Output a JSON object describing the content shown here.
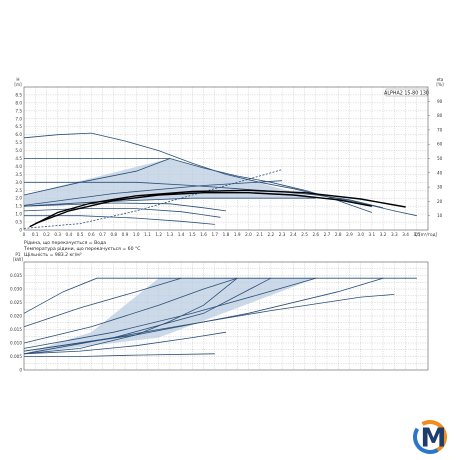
{
  "chart_data": [
    {
      "type": "line",
      "title": "",
      "model_label": "ALPHA2 15-80 130",
      "xlabel": "Q [m³/год]",
      "x_unit_label": "Q [m³/год]",
      "xlim": [
        0,
        3.6
      ],
      "x_ticks": [
        "0",
        "0.1",
        "0.2",
        "0.3",
        "0.4",
        "0.5",
        "0.6",
        "0.7",
        "0.8",
        "0.9",
        "1.0",
        "1.1",
        "1.2",
        "1.3",
        "1.4",
        "1.5",
        "1.6",
        "1.7",
        "1.8",
        "1.9",
        "2.0",
        "2.1",
        "2.2",
        "2.3",
        "2.4",
        "2.5",
        "2.6",
        "2.7",
        "2.8",
        "2.9",
        "3.0",
        "3.1",
        "3.2",
        "3.3",
        "3.4",
        "3.5"
      ],
      "ylabel_left": "H [m]",
      "y_left_var": "H",
      "y_left_unit": "[m]",
      "ylim_left": [
        0,
        9
      ],
      "y_left_ticks": [
        "0",
        "0.5",
        "1.0",
        "1.5",
        "2.0",
        "2.5",
        "3.0",
        "3.5",
        "4.0",
        "4.5",
        "5.0",
        "5.5",
        "6.0",
        "6.5",
        "7.0",
        "7.5",
        "8.0",
        "8.5",
        "9"
      ],
      "ylabel_right": "eta [%]",
      "y_right_var": "eta",
      "y_right_unit": "[%]",
      "ylim_right": [
        0,
        100
      ],
      "y_right_ticks": [
        "10",
        "20",
        "30",
        "40",
        "50",
        "60",
        "70",
        "80",
        "90"
      ],
      "grid": true,
      "notes": [
        "Рідина, що перекачується = Вода",
        "Температура рідини, що перекачується = 60 °C",
        "Щільність = 983.2 кг/м³"
      ],
      "colors": {
        "curve": "#2b4f78",
        "fill": "#b9cce0",
        "efficiency": "#000000",
        "grid": "#9a9a9a"
      },
      "fill_region_H": {
        "upper": [
          [
            0,
            2.2
          ],
          [
            1.3,
            4.5
          ],
          [
            2.6,
            2.0
          ]
        ],
        "lower": [
          [
            0,
            1.5
          ],
          [
            1.5,
            2.0
          ],
          [
            2.6,
            2.0
          ]
        ]
      },
      "series": [
        {
          "kind": "max",
          "values": [
            [
              0,
              5.8
            ],
            [
              0.3,
              6.0
            ],
            [
              0.6,
              6.1
            ],
            [
              0.9,
              5.6
            ],
            [
              1.2,
              5.0
            ],
            [
              1.5,
              4.2
            ],
            [
              1.8,
              3.5
            ],
            [
              2.1,
              3.0
            ],
            [
              2.4,
              2.6
            ],
            [
              2.7,
              2.1
            ],
            [
              3.0,
              1.7
            ],
            [
              3.3,
              1.2
            ],
            [
              3.5,
              0.9
            ]
          ]
        },
        {
          "kind": "constant",
          "values": [
            [
              0,
              4.5
            ],
            [
              1.3,
              4.5
            ],
            [
              1.6,
              3.9
            ],
            [
              1.9,
              3.4
            ],
            [
              2.2,
              3.0
            ],
            [
              2.5,
              2.5
            ],
            [
              2.7,
              2.1
            ],
            [
              2.9,
              1.6
            ],
            [
              3.1,
              1.1
            ]
          ]
        },
        {
          "kind": "constant",
          "values": [
            [
              0,
              3.0
            ],
            [
              1.0,
              3.0
            ],
            [
              1.5,
              2.8
            ],
            [
              1.9,
              2.6
            ],
            [
              2.3,
              2.4
            ],
            [
              2.6,
              2.2
            ],
            [
              2.9,
              1.9
            ],
            [
              3.2,
              1.4
            ]
          ]
        },
        {
          "kind": "proportional",
          "values": [
            [
              0,
              2.2
            ],
            [
              0.5,
              3.0
            ],
            [
              1.0,
              3.7
            ],
            [
              1.3,
              4.5
            ]
          ]
        },
        {
          "kind": "proportional",
          "values": [
            [
              0,
              1.55
            ],
            [
              0.8,
              2.3
            ],
            [
              1.6,
              2.8
            ],
            [
              2.3,
              3.1
            ]
          ]
        },
        {
          "kind": "proportional",
          "values": [
            [
              0,
              1.5
            ],
            [
              0.6,
              1.75
            ],
            [
              1.5,
              2.0
            ],
            [
              2.6,
              2.0
            ]
          ]
        },
        {
          "kind": "proportional",
          "values": [
            [
              0,
              1.5
            ],
            [
              0.4,
              1.6
            ],
            [
              0.8,
              1.7
            ],
            [
              1.3,
              1.65
            ],
            [
              1.6,
              1.4
            ],
            [
              1.8,
              1.2
            ]
          ]
        },
        {
          "kind": "autoadapt",
          "values": [
            [
              0,
              1.2
            ],
            [
              0.5,
              1.35
            ],
            [
              1.0,
              1.35
            ],
            [
              1.4,
              1.15
            ],
            [
              1.6,
              0.95
            ],
            [
              1.75,
              0.8
            ]
          ]
        },
        {
          "kind": "min",
          "values": [
            [
              0,
              0.9
            ],
            [
              0.5,
              0.9
            ],
            [
              1.0,
              0.75
            ],
            [
              1.4,
              0.55
            ],
            [
              1.7,
              0.35
            ]
          ]
        },
        {
          "kind": "system",
          "values": [
            [
              0,
              0.1
            ],
            [
              0.5,
              0.4
            ],
            [
              1.0,
              1.2
            ],
            [
              1.5,
              2.2
            ],
            [
              2.0,
              3.2
            ],
            [
              2.3,
              3.8
            ]
          ]
        },
        {
          "kind": "efficiency",
          "values": [
            [
              0.05,
              0.2
            ],
            [
              0.3,
              1.1
            ],
            [
              0.6,
              1.7
            ],
            [
              1.0,
              2.15
            ],
            [
              1.5,
              2.42
            ],
            [
              2.0,
              2.5
            ],
            [
              2.5,
              2.35
            ],
            [
              3.0,
              1.95
            ],
            [
              3.4,
              1.45
            ]
          ]
        },
        {
          "kind": "efficiency",
          "values": [
            [
              0.1,
              0.4
            ],
            [
              0.4,
              1.2
            ],
            [
              0.8,
              1.85
            ],
            [
              1.2,
              2.2
            ],
            [
              1.6,
              2.35
            ],
            [
              2.0,
              2.35
            ],
            [
              2.4,
              2.2
            ],
            [
              2.8,
              1.9
            ],
            [
              3.1,
              1.5
            ]
          ]
        }
      ]
    },
    {
      "type": "line",
      "ylabel": "P1 [kW]",
      "y_var": "P1",
      "y_unit": "[kW]",
      "ylim": [
        0,
        0.04
      ],
      "y_ticks": [
        "0",
        "0.005",
        "0.010",
        "0.015",
        "0.020",
        "0.025",
        "0.030",
        "0.035"
      ],
      "xlim": [
        0,
        3.6
      ],
      "grid": true,
      "colors": {
        "curve": "#2b4f78",
        "fill": "#b9cce0"
      },
      "fill_region_P": {
        "upper": [
          [
            0,
            0.006
          ],
          [
            0.6,
            0.014
          ],
          [
            1.2,
            0.034
          ],
          [
            2.6,
            0.034
          ]
        ],
        "lower": [
          [
            0,
            0.006
          ],
          [
            1.2,
            0.012
          ],
          [
            2.6,
            0.034
          ]
        ]
      },
      "series": [
        {
          "kind": "max",
          "values": [
            [
              0,
              0.021
            ],
            [
              0.35,
              0.029
            ],
            [
              0.65,
              0.034
            ],
            [
              3.5,
              0.034
            ]
          ]
        },
        {
          "kind": "power",
          "values": [
            [
              0,
              0.016
            ],
            [
              0.5,
              0.023
            ],
            [
              1.0,
              0.029
            ],
            [
              1.4,
              0.034
            ]
          ]
        },
        {
          "kind": "power",
          "values": [
            [
              0,
              0.01
            ],
            [
              0.6,
              0.016
            ],
            [
              1.2,
              0.024
            ],
            [
              1.6,
              0.03
            ],
            [
              1.9,
              0.034
            ]
          ]
        },
        {
          "kind": "power",
          "values": [
            [
              0,
              0.008
            ],
            [
              0.8,
              0.014
            ],
            [
              1.5,
              0.021
            ],
            [
              2.1,
              0.028
            ],
            [
              2.6,
              0.034
            ]
          ]
        },
        {
          "kind": "power",
          "values": [
            [
              0,
              0.007
            ],
            [
              1.0,
              0.013
            ],
            [
              2.0,
              0.021
            ],
            [
              2.8,
              0.029
            ],
            [
              3.2,
              0.034
            ]
          ]
        },
        {
          "kind": "power",
          "values": [
            [
              0,
              0.006
            ],
            [
              1.2,
              0.015
            ],
            [
              2.2,
              0.022
            ],
            [
              3.0,
              0.027
            ],
            [
              3.3,
              0.028
            ]
          ]
        },
        {
          "kind": "power",
          "values": [
            [
              0,
              0.006
            ],
            [
              0.5,
              0.007
            ],
            [
              1.0,
              0.009
            ],
            [
              1.5,
              0.012
            ],
            [
              1.8,
              0.014
            ]
          ]
        },
        {
          "kind": "power",
          "values": [
            [
              0,
              0.005
            ],
            [
              0.5,
              0.005
            ],
            [
              1.0,
              0.0055
            ],
            [
              1.7,
              0.006
            ]
          ]
        },
        {
          "kind": "proportional",
          "values": [
            [
              0,
              0.006
            ],
            [
              0.5,
              0.008
            ],
            [
              1.0,
              0.013
            ],
            [
              1.3,
              0.018
            ],
            [
              1.6,
              0.024
            ],
            [
              1.9,
              0.034
            ]
          ]
        },
        {
          "kind": "proportional",
          "values": [
            [
              0,
              0.007
            ],
            [
              0.8,
              0.012
            ],
            [
              1.6,
              0.021
            ],
            [
              2.2,
              0.034
            ]
          ]
        }
      ]
    }
  ],
  "logo": {
    "name": "M-logo",
    "letter": "M",
    "colors": [
      "#f28c1e",
      "#2a76c9",
      "#1e3d6b"
    ]
  }
}
